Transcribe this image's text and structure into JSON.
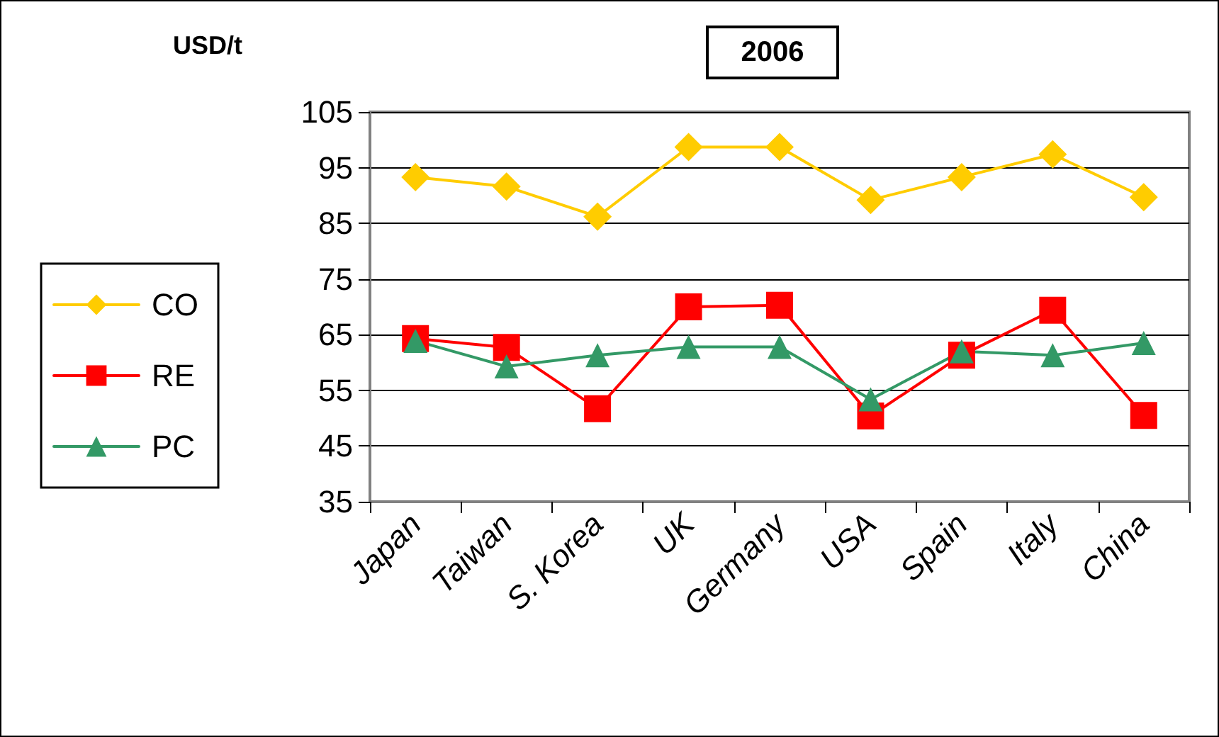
{
  "chart_data": {
    "type": "line",
    "title": "2006",
    "ylabel": "USD/t",
    "categories": [
      "Japan",
      "Taiwan",
      "S. Korea",
      "UK",
      "Germany",
      "USA",
      "Spain",
      "Italy",
      "China"
    ],
    "series": [
      {
        "name": "CO",
        "color": "#ffcc00",
        "marker": "diamond",
        "values": [
          93.3,
          91.6,
          86.2,
          98.7,
          98.7,
          89.2,
          93.3,
          97.4,
          89.7
        ]
      },
      {
        "name": "RE",
        "color": "#ff0000",
        "marker": "square",
        "values": [
          64.3,
          62.7,
          51.7,
          70,
          70.3,
          50.4,
          61.3,
          69.4,
          50.5
        ]
      },
      {
        "name": "PC",
        "color": "#339966",
        "marker": "triangle",
        "values": [
          63.9,
          59.3,
          61.3,
          62.8,
          62.8,
          53.4,
          62,
          61.3,
          63.5
        ]
      }
    ],
    "ylim": [
      35,
      105
    ],
    "yticks": [
      35,
      45,
      55,
      65,
      75,
      85,
      95,
      105
    ],
    "grid": "y",
    "legend": "left",
    "line_style": "solid"
  }
}
